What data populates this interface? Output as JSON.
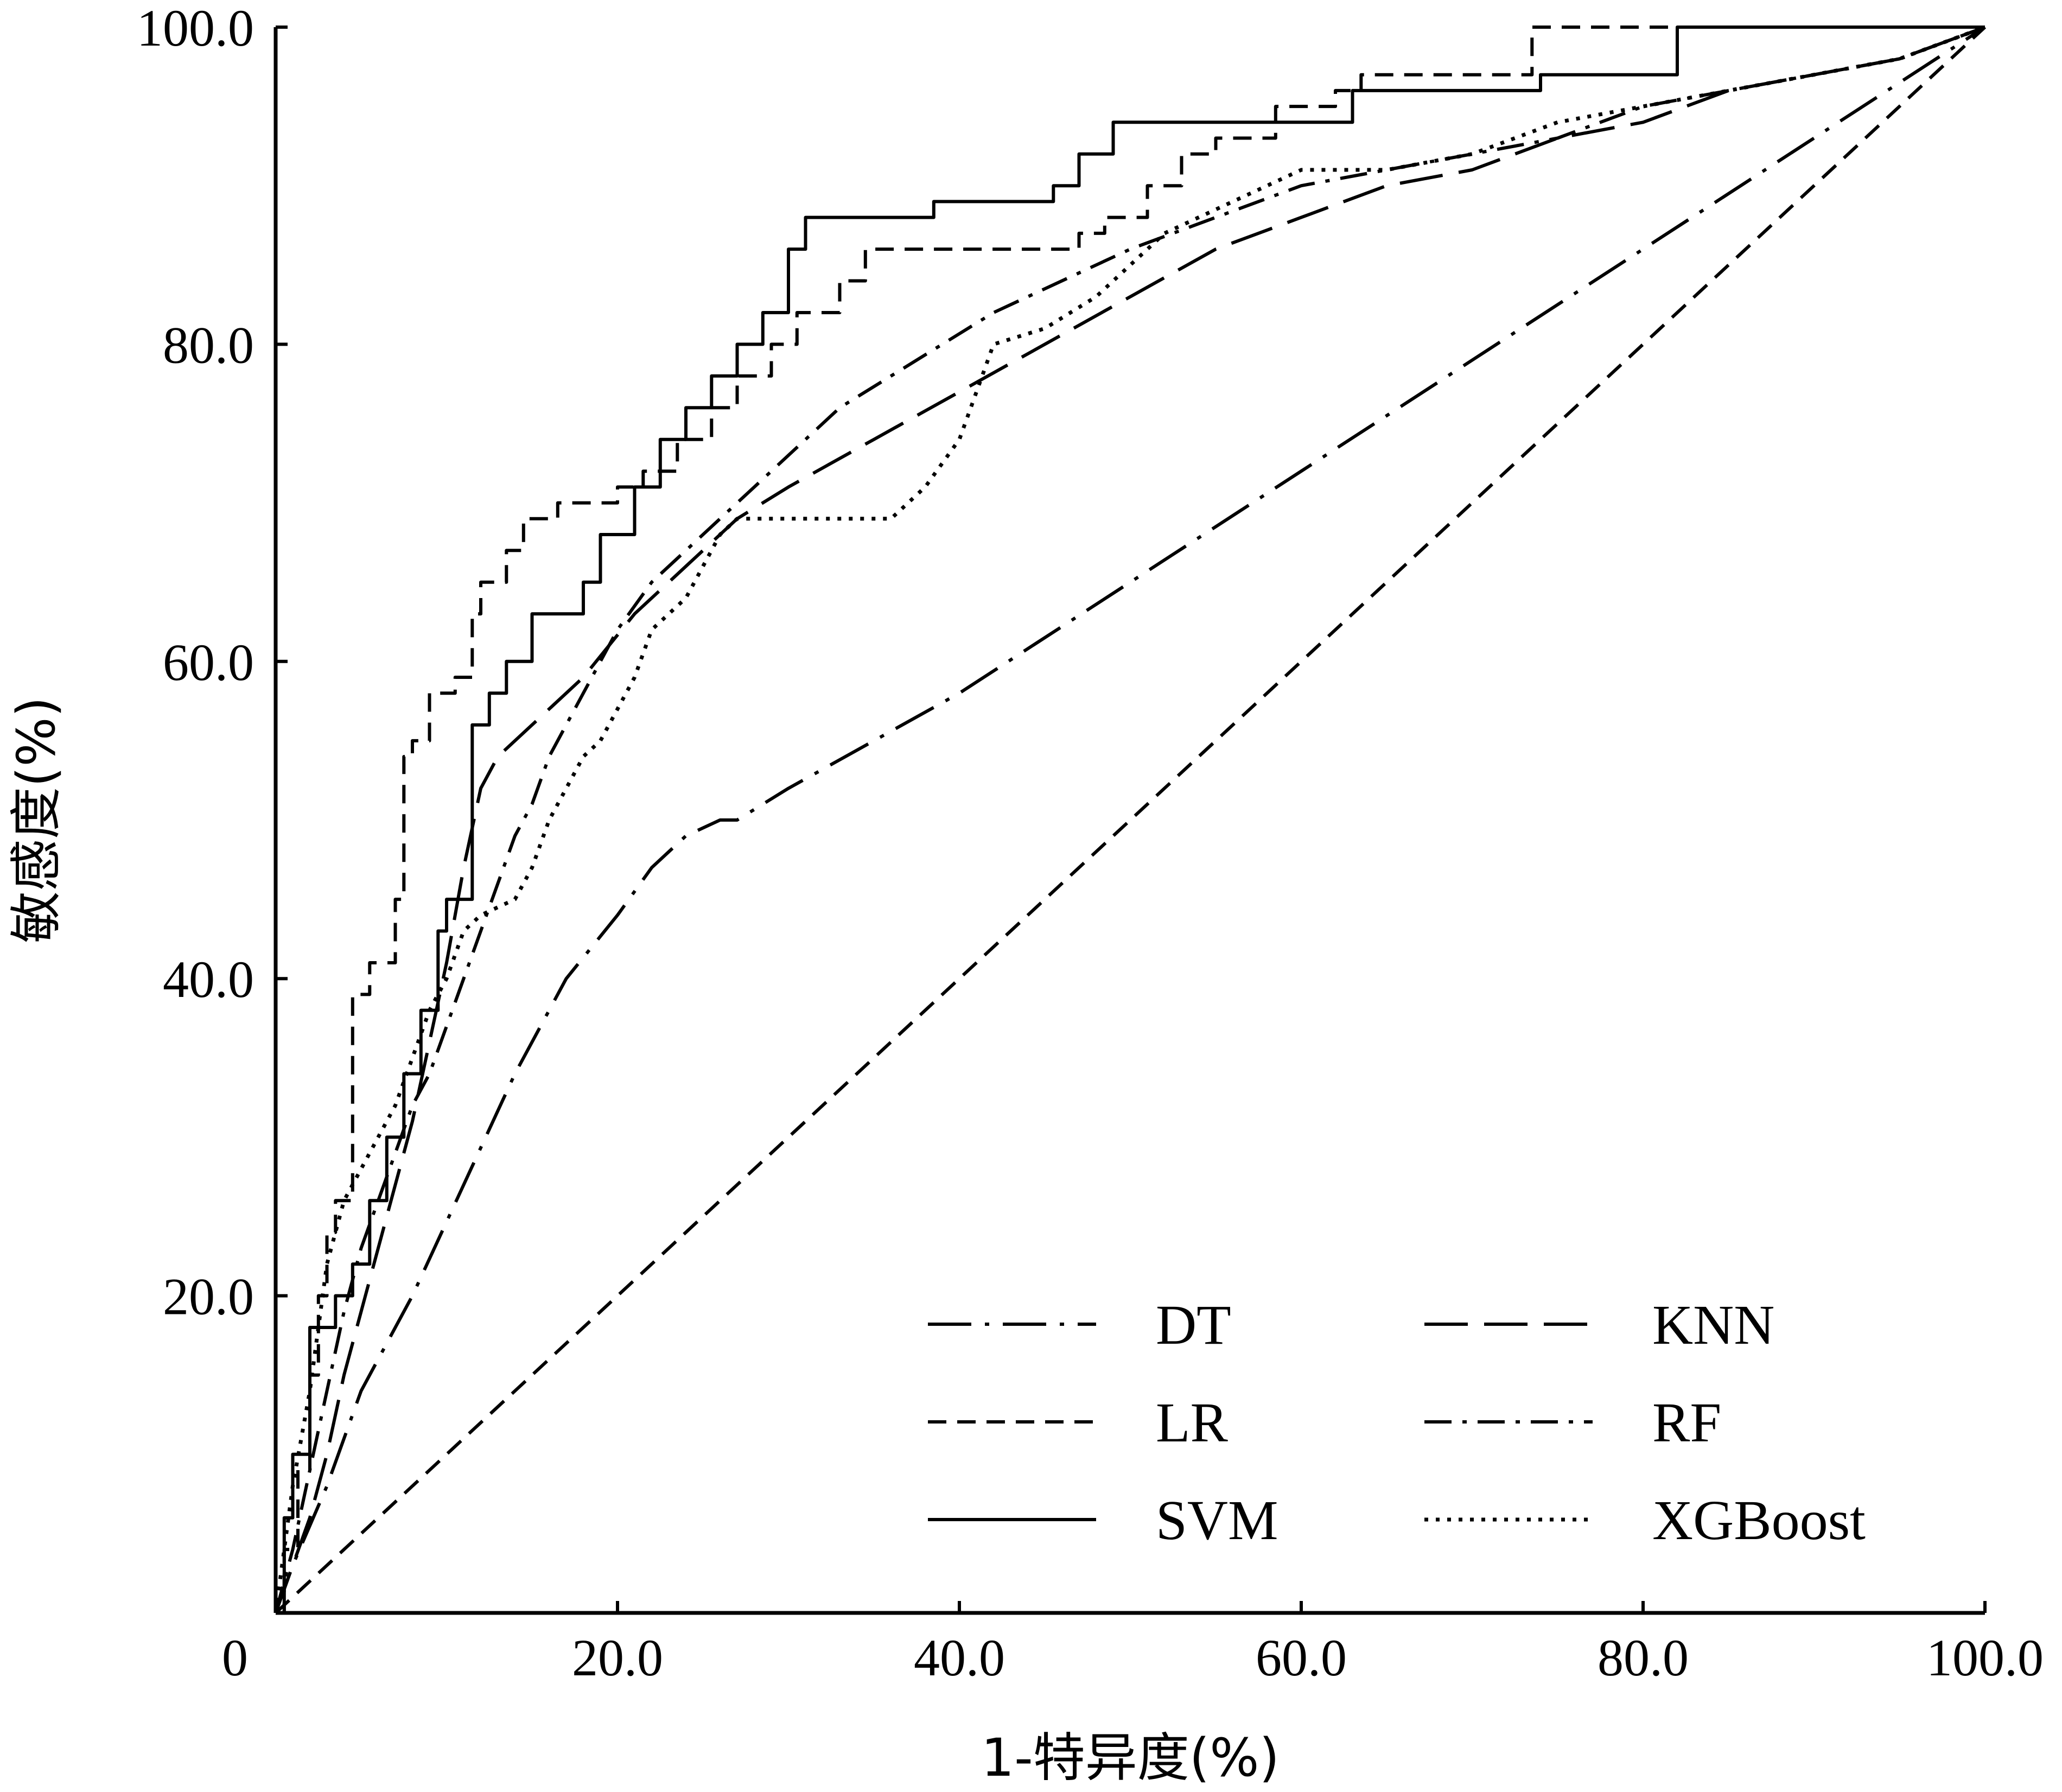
{
  "chart_data": {
    "type": "line",
    "xlabel": "1-特异度(%)",
    "ylabel": "敏感度(%)",
    "xlim": [
      0,
      100
    ],
    "ylim": [
      0,
      100
    ],
    "x_ticks": [
      "0",
      "20.0",
      "40.0",
      "60.0",
      "80.0",
      "100.0"
    ],
    "y_ticks": [
      "20.0",
      "40.0",
      "60.0",
      "80.0",
      "100.0"
    ],
    "grid": false,
    "legend_position": "bottom-right",
    "series": [
      {
        "name": "DT",
        "dash": "dashdotlong",
        "x": [
          0,
          1,
          3,
          5,
          8,
          11,
          14,
          17,
          20,
          22,
          24,
          26,
          27,
          30,
          35,
          40,
          50,
          60,
          70,
          80,
          90,
          100
        ],
        "y": [
          0,
          3,
          8,
          14,
          20,
          27,
          34,
          40,
          44,
          47,
          49,
          50,
          50,
          52,
          55,
          58,
          65,
          72,
          79,
          86,
          93,
          100
        ]
      },
      {
        "name": "KNN",
        "dash": "longdash",
        "x": [
          0,
          1,
          2,
          3,
          4,
          5,
          6,
          7,
          8,
          9,
          10,
          11,
          12,
          13,
          15,
          18,
          21,
          24,
          27,
          30,
          35,
          40,
          45,
          50,
          55,
          60,
          65,
          70,
          75,
          80,
          85,
          90,
          95,
          100
        ],
        "y": [
          0,
          3,
          6,
          10,
          15,
          19,
          23,
          27,
          31,
          36,
          41,
          47,
          52,
          54,
          56,
          59,
          63,
          66,
          69,
          71,
          74,
          77,
          80,
          83,
          86,
          88,
          90,
          91,
          93,
          94,
          96,
          97,
          98,
          100
        ]
      },
      {
        "name": "LR",
        "dash": "dash",
        "x": [
          0,
          0.5,
          0.5,
          1.3,
          1.3,
          2,
          2,
          2.5,
          2.5,
          3,
          3,
          3.5,
          3.5,
          4.5,
          4.5,
          5.5,
          5.5,
          7,
          7,
          7.5,
          7.5,
          8,
          8,
          9,
          9,
          10.5,
          10.5,
          11.5,
          11.5,
          12,
          12,
          13.5,
          13.5,
          14.5,
          14.5,
          16.5,
          16.5,
          20,
          20,
          21.5,
          21.5,
          23.5,
          23.5,
          25.5,
          25.5,
          27,
          27,
          29,
          29,
          30.5,
          30.5,
          33,
          33,
          34.5,
          34.5,
          36,
          36,
          47,
          47,
          48.5,
          48.5,
          51,
          51,
          53,
          53,
          55,
          55,
          58.5,
          58.5,
          62,
          62,
          63.5,
          63.5,
          72,
          72,
          73.5,
          73.5,
          100
        ],
        "y": [
          0,
          0,
          4,
          4,
          9,
          9,
          15,
          15,
          20,
          20,
          24,
          24,
          26,
          26,
          39,
          39,
          41,
          41,
          45,
          45,
          54,
          54,
          55,
          55,
          58,
          58,
          59,
          59,
          63,
          63,
          65,
          65,
          67,
          67,
          69,
          69,
          70,
          70,
          71,
          71,
          72,
          72,
          74,
          74,
          76,
          76,
          78,
          78,
          80,
          80,
          82,
          82,
          84,
          84,
          86,
          86,
          86,
          86,
          87,
          87,
          88,
          88,
          90,
          90,
          92,
          92,
          93,
          93,
          95,
          95,
          96,
          96,
          97,
          97,
          97,
          97,
          100,
          100
        ]
      },
      {
        "name": "RF",
        "dash": "dashdot",
        "x": [
          0,
          1,
          2,
          3,
          4,
          5,
          6,
          7,
          8,
          9,
          10,
          11,
          12,
          13,
          14,
          15,
          16,
          17,
          18,
          19,
          20,
          22,
          24,
          26,
          28,
          30,
          33,
          36,
          39,
          42,
          46,
          50,
          55,
          60,
          65,
          70,
          75,
          80,
          85,
          90,
          95,
          100
        ],
        "y": [
          0,
          4,
          9,
          14,
          19,
          23,
          26,
          29,
          32,
          34,
          37,
          40,
          43,
          46,
          49,
          51,
          54,
          56,
          58,
          60,
          62,
          65,
          67,
          69,
          71,
          73,
          76,
          78,
          80,
          82,
          84,
          86,
          88,
          90,
          91,
          92,
          93,
          95,
          96,
          97,
          98,
          100
        ]
      },
      {
        "name": "SVM",
        "dash": "solid",
        "x": [
          0,
          0.5,
          0.5,
          1,
          1,
          2,
          2,
          3.5,
          3.5,
          4.5,
          4.5,
          5.5,
          5.5,
          6.5,
          6.5,
          7.5,
          7.5,
          8.5,
          8.5,
          9.5,
          9.5,
          10,
          10,
          11.5,
          11.5,
          12.5,
          12.5,
          13.5,
          13.5,
          15,
          15,
          18,
          18,
          19,
          19,
          21,
          21,
          22.5,
          22.5,
          24,
          24,
          25.5,
          25.5,
          27,
          27,
          28.5,
          28.5,
          30,
          30,
          31,
          31,
          38.5,
          38.5,
          45.5,
          45.5,
          47,
          47,
          49,
          49,
          63,
          63,
          74,
          74,
          82,
          82,
          100
        ],
        "y": [
          0,
          0,
          6,
          6,
          10,
          10,
          18,
          18,
          20,
          20,
          22,
          22,
          26,
          26,
          30,
          30,
          34,
          34,
          38,
          38,
          43,
          43,
          45,
          45,
          56,
          56,
          58,
          58,
          60,
          60,
          63,
          63,
          65,
          65,
          68,
          68,
          71,
          71,
          74,
          74,
          76,
          76,
          78,
          78,
          80,
          80,
          82,
          82,
          86,
          86,
          88,
          88,
          89,
          89,
          90,
          90,
          92,
          92,
          94,
          94,
          96,
          96,
          97,
          97,
          100,
          100
        ]
      },
      {
        "name": "XGBoost",
        "dash": "dot",
        "x": [
          0,
          1,
          2,
          3,
          4,
          5,
          6,
          7,
          8,
          9,
          10,
          11,
          12,
          14,
          15,
          16,
          17,
          18,
          19,
          20,
          21,
          22,
          24,
          25,
          26,
          27,
          28,
          30,
          33,
          36,
          38,
          40,
          41,
          42,
          45,
          48,
          50,
          52,
          54,
          56,
          58,
          60,
          65,
          70,
          75,
          80,
          85,
          90,
          95,
          100
        ],
        "y": [
          0,
          8,
          14,
          22,
          26,
          28,
          30,
          32,
          35,
          38,
          40,
          43,
          44,
          45,
          47,
          50,
          52,
          54,
          55,
          57,
          59,
          62,
          64,
          66,
          68,
          69,
          69,
          69,
          69,
          69,
          71,
          74,
          77,
          80,
          81,
          83,
          85,
          87,
          88,
          89,
          90,
          91,
          91,
          92,
          94,
          95,
          96,
          97,
          98,
          100
        ]
      },
      {
        "name": "",
        "dash": "dash",
        "x": [
          0,
          100
        ],
        "y": [
          0,
          100
        ]
      }
    ]
  }
}
